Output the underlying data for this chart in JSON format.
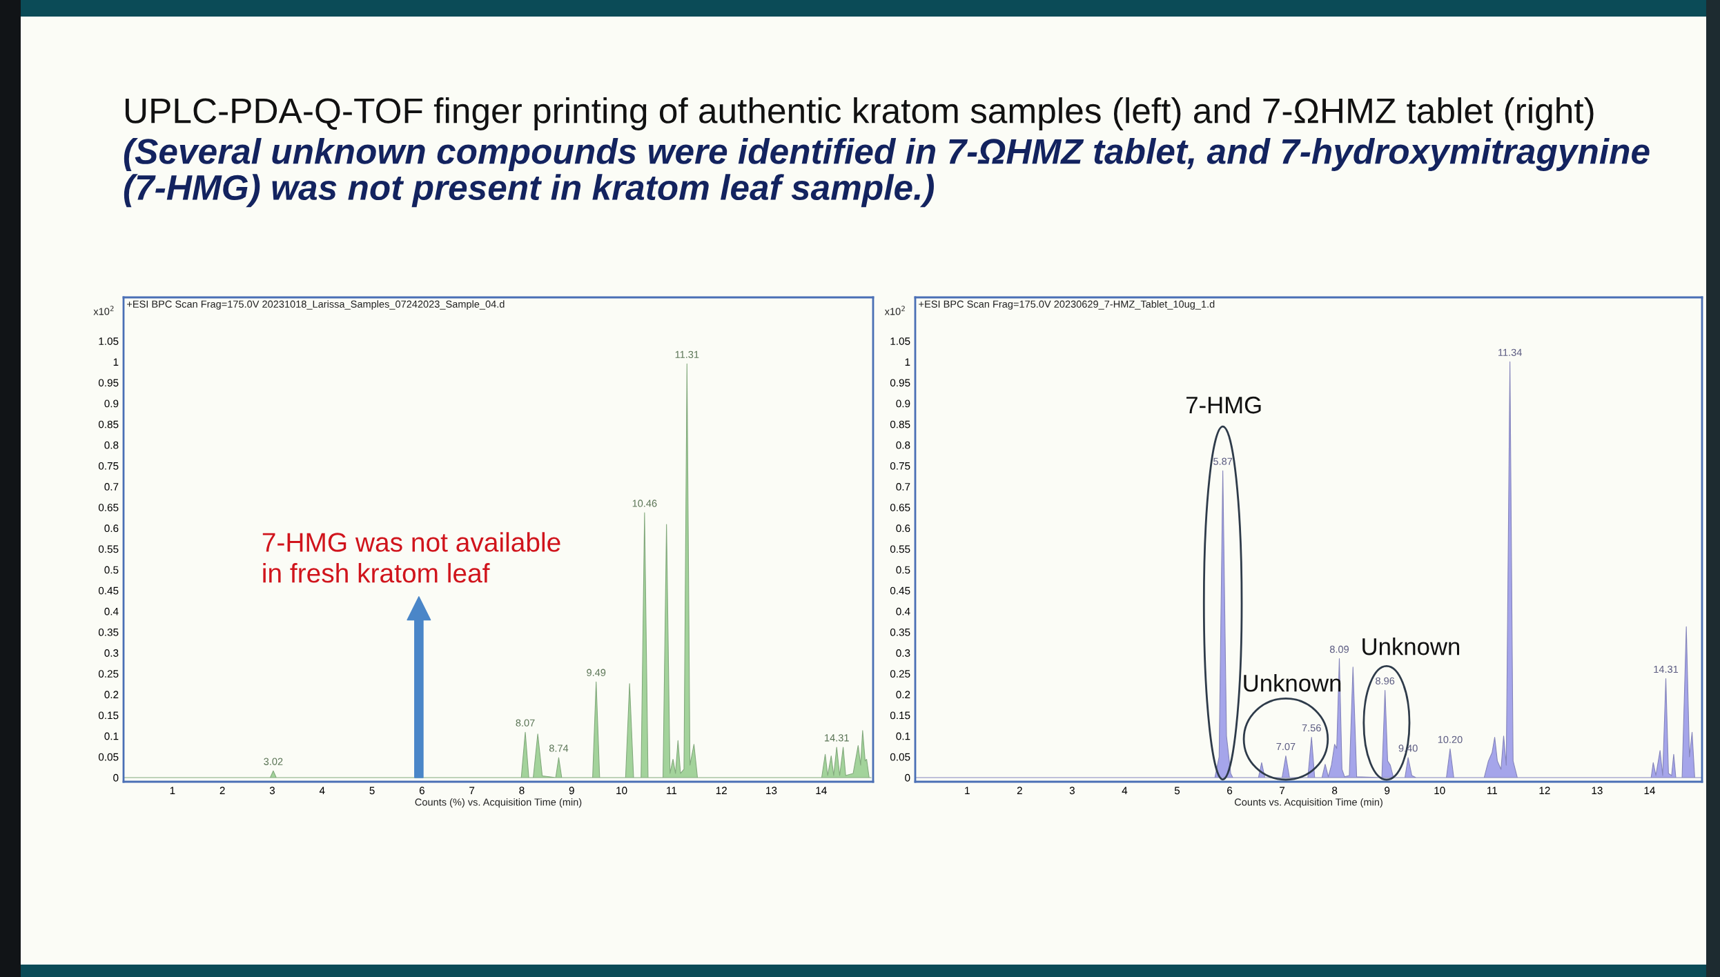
{
  "chart_data": [
    {
      "type": "other",
      "title": "UPLC-PDA-Q-TOF finger printing of authentic kratom samples (left) and 7-ΩHMZ tablet (right)",
      "subtitle": "(Several unknown compounds were identified in 7-ΩHMZ tablet, and 7-hydroxymitragynine (7-HMG) was not present in kratom leaf sample.)"
    },
    {
      "type": "area",
      "title": "+ESI BPC Scan Frag=175.0V 20231018_Larissa_Samples_07242023_Sample_04.d",
      "xlabel": "Counts (%) vs. Acquisition Time (min)",
      "ylabel": "x10$^{2}$",
      "x": [
        0.02,
        2.96,
        3.02,
        3.08,
        7.99,
        8.07,
        8.14,
        8.23,
        8.32,
        8.41,
        8.68,
        8.74,
        8.8,
        9.42,
        9.49,
        9.56,
        10.08,
        10.16,
        10.24,
        10.39,
        10.46,
        10.53,
        10.83,
        10.9,
        10.97,
        11.03,
        11.08,
        11.13,
        11.18,
        11.25,
        11.31,
        11.37,
        11.45,
        11.52,
        14.01,
        14.08,
        14.13,
        14.2,
        14.25,
        14.31,
        14.37,
        14.44,
        14.49,
        14.64,
        14.74,
        14.79,
        14.83,
        14.88,
        14.91,
        14.96,
        15.0
      ],
      "series": [
        {
          "color": "#a3d39b",
          "values": [
            0,
            0,
            0.016,
            0,
            0,
            0.109,
            0,
            0,
            0.105,
            0.004,
            0,
            0.048,
            0,
            0,
            0.23,
            0,
            0,
            0.226,
            0,
            0,
            0.637,
            0,
            0,
            0.609,
            0.01,
            0.044,
            0.01,
            0.089,
            0.01,
            0.02,
            0.995,
            0.03,
            0.08,
            0,
            0,
            0.056,
            0.005,
            0.052,
            0.005,
            0.073,
            0.005,
            0.073,
            0.005,
            0.01,
            0.077,
            0.03,
            0.113,
            0.04,
            0.044,
            0,
            0
          ]
        }
      ],
      "xlim": [
        0.02,
        15.04
      ],
      "ylim": [
        -0.01,
        1.155
      ],
      "xticks": [
        1,
        2,
        3,
        4,
        5,
        6,
        7,
        8,
        9,
        10,
        11,
        12,
        13,
        14
      ],
      "yticks": [
        0,
        0.05,
        0.1,
        0.15,
        0.2,
        0.25,
        0.3,
        0.35,
        0.4,
        0.45,
        0.5,
        0.55,
        0.6,
        0.65,
        0.7,
        0.75,
        0.8,
        0.85,
        0.9,
        0.95,
        1,
        1.05
      ],
      "annotations": [
        "7-HMG was not available\nin fresh kratom leaf",
        {
          "text": "3.02",
          "x": 3.02,
          "y": 0.016
        },
        {
          "text": "8.07",
          "x": 8.07,
          "y": 0.109
        },
        {
          "text": "8.74",
          "x": 8.74,
          "y": 0.048
        },
        {
          "text": "9.49",
          "x": 9.49,
          "y": 0.23
        },
        {
          "text": "10.46",
          "x": 10.46,
          "y": 0.637
        },
        {
          "text": "11.31",
          "x": 11.31,
          "y": 0.995
        },
        {
          "text": "14.31",
          "x": 14.31,
          "y": 0.073
        }
      ]
    },
    {
      "type": "area",
      "title": "+ESI BPC Scan Frag=175.0V 20230629_7-HMZ_Tablet_10ug_1.d",
      "xlabel": "Counts vs. Acquisition Time (min)",
      "ylabel": "x10$^{2}$",
      "x": [
        0.01,
        5.72,
        5.8,
        5.87,
        5.94,
        6.02,
        6.06,
        6.55,
        6.61,
        6.67,
        7.0,
        7.07,
        7.14,
        7.49,
        7.56,
        7.62,
        7.76,
        7.82,
        7.88,
        7.94,
        8.0,
        8.04,
        8.09,
        8.14,
        8.19,
        8.28,
        8.35,
        8.42,
        8.9,
        8.96,
        9.01,
        9.06,
        9.12,
        9.34,
        9.4,
        9.47,
        9.55,
        10.13,
        10.2,
        10.27,
        10.85,
        10.93,
        11.0,
        11.05,
        11.1,
        11.17,
        11.22,
        11.27,
        11.34,
        11.4,
        11.48,
        14.03,
        14.07,
        14.12,
        14.2,
        14.25,
        14.31,
        14.36,
        14.42,
        14.46,
        14.5,
        14.62,
        14.7,
        14.76,
        14.81,
        14.86,
        15.0
      ],
      "series": [
        {
          "color": "#a5a5ea",
          "values": [
            0,
            0,
            0.05,
            0.738,
            0.1,
            0.01,
            0,
            0,
            0.036,
            0,
            0,
            0.052,
            0,
            0,
            0.097,
            0,
            0,
            0.032,
            0.002,
            0.03,
            0.08,
            0.07,
            0.286,
            0.02,
            0.002,
            0.005,
            0.266,
            0.002,
            0,
            0.21,
            0.04,
            0.03,
            0,
            0,
            0.048,
            0.005,
            0,
            0,
            0.069,
            0,
            0,
            0.04,
            0.06,
            0.097,
            0.04,
            0.02,
            0.1,
            0.03,
            1.0,
            0.04,
            0,
            0,
            0.036,
            0.005,
            0.065,
            0.005,
            0.238,
            0.01,
            0.005,
            0.056,
            0,
            0,
            0.363,
            0.05,
            0.109,
            0,
            0
          ]
        }
      ],
      "xlim": [
        0.01,
        15.0
      ],
      "ylim": [
        -0.01,
        1.155
      ],
      "xticks": [
        1,
        2,
        3,
        4,
        5,
        6,
        7,
        8,
        9,
        10,
        11,
        12,
        13,
        14
      ],
      "yticks": [
        0,
        0.05,
        0.1,
        0.15,
        0.2,
        0.25,
        0.3,
        0.35,
        0.4,
        0.45,
        0.5,
        0.55,
        0.6,
        0.65,
        0.7,
        0.75,
        0.8,
        0.85,
        0.9,
        0.95,
        1,
        1.05
      ],
      "annotations": [
        {
          "text": "7-HMG",
          "x": 5.87,
          "y": 0.738
        },
        {
          "text": "Unknown",
          "x": 7.07,
          "y": 0.052
        },
        {
          "text": "Unknown",
          "x": 8.96,
          "y": 0.21
        },
        {
          "text": "5.87",
          "x": 5.87,
          "y": 0.738
        },
        {
          "text": "7.07",
          "x": 7.07,
          "y": 0.052
        },
        {
          "text": "7.56",
          "x": 7.56,
          "y": 0.097
        },
        {
          "text": "8.09",
          "x": 8.09,
          "y": 0.286
        },
        {
          "text": "8.96",
          "x": 8.96,
          "y": 0.21
        },
        {
          "text": "9.40",
          "x": 9.4,
          "y": 0.048
        },
        {
          "text": "10.20",
          "x": 10.2,
          "y": 0.069
        },
        {
          "text": "11.34",
          "x": 11.34,
          "y": 1.0
        },
        {
          "text": "14.31",
          "x": 14.31,
          "y": 0.238
        }
      ]
    }
  ]
}
